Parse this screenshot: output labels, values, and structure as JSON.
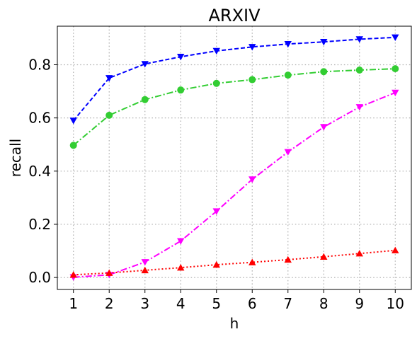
{
  "chart_data": {
    "type": "line",
    "title": "ARXIV",
    "xlabel": "h",
    "ylabel": "recall",
    "x": [
      1,
      2,
      3,
      4,
      5,
      6,
      7,
      8,
      9,
      10
    ],
    "xticks": [
      "1",
      "2",
      "3",
      "4",
      "5",
      "6",
      "7",
      "8",
      "9",
      "10"
    ],
    "yticks": [
      "0.0",
      "0.2",
      "0.4",
      "0.6",
      "0.8"
    ],
    "xlim": [
      0.55,
      10.45
    ],
    "ylim": [
      -0.045,
      0.945
    ],
    "grid": true,
    "series": [
      {
        "color": "#0000ff",
        "marker": "triangle-down",
        "linestyle": "dashed",
        "values": [
          0.59,
          0.75,
          0.803,
          0.83,
          0.852,
          0.867,
          0.878,
          0.886,
          0.896,
          0.903
        ]
      },
      {
        "color": "#32cd32",
        "marker": "circle",
        "linestyle": "dashdot",
        "values": [
          0.497,
          0.61,
          0.669,
          0.705,
          0.73,
          0.744,
          0.761,
          0.774,
          0.78,
          0.785
        ]
      },
      {
        "color": "#ff00ff",
        "marker": "triangle-down",
        "linestyle": "dashdot",
        "values": [
          0.001,
          0.01,
          0.058,
          0.137,
          0.249,
          0.369,
          0.472,
          0.566,
          0.641,
          0.695
        ]
      },
      {
        "color": "#ff0000",
        "marker": "triangle-up",
        "linestyle": "dotted",
        "values": [
          0.01,
          0.017,
          0.027,
          0.037,
          0.048,
          0.057,
          0.067,
          0.078,
          0.09,
          0.102
        ]
      }
    ]
  }
}
